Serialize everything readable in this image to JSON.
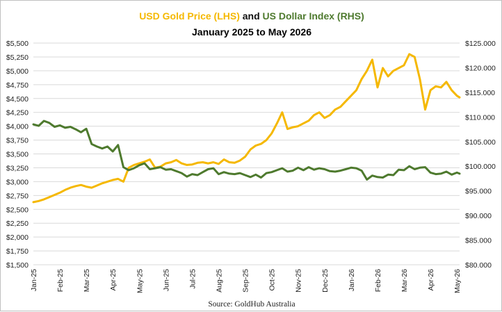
{
  "chart_data": {
    "type": "line",
    "title_parts": [
      {
        "text": "USD Gold Price (LHS)",
        "color": "#f5b800"
      },
      {
        "text": " and ",
        "color": "#111111"
      },
      {
        "text": "US Dollar Index (RHS)",
        "color": "#4e7a2e"
      }
    ],
    "subtitle": "January 2025 to May 2026",
    "source": "Source: GoldHub Australia",
    "x_ticks": [
      "Jan-25",
      "Feb-25",
      "Mar-25",
      "Apr-25",
      "May-25",
      "Jun-25",
      "Jul-25",
      "Aug-25",
      "Sep-25",
      "Oct-25",
      "Nov-25",
      "Dec-25",
      "Jan-26",
      "Feb-26",
      "Mar-26",
      "Apr-26",
      "May-26"
    ],
    "y_left": {
      "min": 1500,
      "max": 5500,
      "step": 250,
      "prefix": "$",
      "ticks": [
        "$1,500",
        "$1,750",
        "$2,000",
        "$2,250",
        "$2,500",
        "$2,750",
        "$3,000",
        "$3,250",
        "$3,500",
        "$3,750",
        "$4,000",
        "$4,250",
        "$4,500",
        "$4,750",
        "$5,000",
        "$5,250",
        "$5,500"
      ]
    },
    "y_right": {
      "min": 80,
      "max": 125,
      "step": 5,
      "ticks": [
        "$80.000",
        "$85.000",
        "$90.000",
        "$95.000",
        "$100.000",
        "$105.000",
        "$110.000",
        "$115.000",
        "$120.000",
        "$125.000"
      ]
    },
    "grid": true,
    "x_range": [
      0,
      16.1
    ],
    "series": [
      {
        "name": "USD Gold Price (LHS)",
        "axis": "left",
        "color": "#f5b800",
        "x": [
          0,
          0.2,
          0.4,
          0.6,
          0.8,
          1.0,
          1.2,
          1.4,
          1.6,
          1.8,
          2.0,
          2.2,
          2.4,
          2.6,
          2.8,
          3.0,
          3.2,
          3.4,
          3.6,
          3.8,
          4.0,
          4.2,
          4.4,
          4.6,
          4.8,
          5.0,
          5.2,
          5.4,
          5.6,
          5.8,
          6.0,
          6.2,
          6.4,
          6.6,
          6.8,
          7.0,
          7.2,
          7.4,
          7.6,
          7.8,
          8.0,
          8.2,
          8.4,
          8.6,
          8.8,
          9.0,
          9.2,
          9.4,
          9.6,
          9.8,
          10.0,
          10.2,
          10.4,
          10.6,
          10.8,
          11.0,
          11.2,
          11.4,
          11.6,
          11.8,
          12.0,
          12.2,
          12.4,
          12.6,
          12.8,
          13.0,
          13.2,
          13.4,
          13.6,
          13.8,
          14.0,
          14.2,
          14.4,
          14.6,
          14.8,
          15.0,
          15.2,
          15.4,
          15.6,
          15.8,
          16.0,
          16.1
        ],
        "values": [
          2630,
          2650,
          2680,
          2720,
          2760,
          2800,
          2850,
          2890,
          2920,
          2940,
          2910,
          2890,
          2930,
          2970,
          3000,
          3030,
          3050,
          3000,
          3250,
          3300,
          3330,
          3360,
          3400,
          3250,
          3270,
          3330,
          3350,
          3390,
          3330,
          3300,
          3310,
          3340,
          3350,
          3330,
          3350,
          3320,
          3400,
          3350,
          3340,
          3380,
          3450,
          3580,
          3650,
          3680,
          3750,
          3870,
          4050,
          4250,
          3950,
          3980,
          4000,
          4050,
          4100,
          4200,
          4250,
          4150,
          4200,
          4300,
          4350,
          4450,
          4550,
          4650,
          4850,
          5000,
          5200,
          4700,
          5050,
          4900,
          5000,
          5050,
          5100,
          5300,
          5250,
          4850,
          4300,
          4650,
          4720,
          4700,
          4800,
          4650,
          4550,
          4520
        ]
      },
      {
        "name": "US Dollar Index (RHS)",
        "axis": "right",
        "color": "#4e7a2e",
        "x": [
          0,
          0.2,
          0.4,
          0.6,
          0.8,
          1.0,
          1.2,
          1.4,
          1.6,
          1.8,
          2.0,
          2.2,
          2.4,
          2.6,
          2.8,
          3.0,
          3.2,
          3.4,
          3.6,
          3.8,
          4.0,
          4.2,
          4.4,
          4.6,
          4.8,
          5.0,
          5.2,
          5.4,
          5.6,
          5.8,
          6.0,
          6.2,
          6.4,
          6.6,
          6.8,
          7.0,
          7.2,
          7.4,
          7.6,
          7.8,
          8.0,
          8.2,
          8.4,
          8.6,
          8.8,
          9.0,
          9.2,
          9.4,
          9.6,
          9.8,
          10.0,
          10.2,
          10.4,
          10.6,
          10.8,
          11.0,
          11.2,
          11.4,
          11.6,
          11.8,
          12.0,
          12.2,
          12.4,
          12.6,
          12.8,
          13.0,
          13.2,
          13.4,
          13.6,
          13.8,
          14.0,
          14.2,
          14.4,
          14.6,
          14.8,
          15.0,
          15.2,
          15.4,
          15.6,
          15.8,
          16.0,
          16.1
        ],
        "values": [
          108.5,
          108.2,
          109.2,
          108.8,
          108.0,
          108.3,
          107.8,
          108.0,
          107.5,
          106.9,
          107.6,
          104.5,
          104.0,
          103.6,
          104.0,
          103.0,
          104.3,
          99.8,
          99.2,
          99.6,
          100.2,
          100.6,
          99.4,
          99.6,
          99.8,
          99.3,
          99.4,
          99.0,
          98.6,
          97.9,
          98.4,
          98.2,
          98.8,
          99.4,
          99.6,
          98.4,
          98.8,
          98.5,
          98.4,
          98.6,
          98.2,
          97.8,
          98.3,
          97.7,
          98.6,
          98.8,
          99.2,
          99.6,
          98.9,
          99.1,
          99.7,
          99.2,
          99.8,
          99.3,
          99.6,
          99.4,
          99.0,
          98.9,
          99.1,
          99.4,
          99.7,
          99.6,
          99.1,
          97.3,
          98.1,
          97.8,
          97.7,
          98.3,
          98.2,
          99.3,
          99.2,
          100.0,
          99.4,
          99.7,
          99.8,
          98.7,
          98.4,
          98.5,
          98.9,
          98.3,
          98.7,
          98.5
        ]
      }
    ]
  }
}
